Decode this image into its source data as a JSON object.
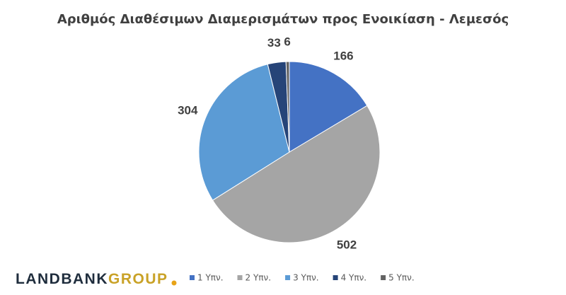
{
  "chart_data": {
    "type": "pie",
    "title": "Αριθμός Διαθέσιμων Διαμερισμάτων προς Ενοικίαση - Λεμεσός",
    "categories": [
      "1 Υπν.",
      "2 Υπν.",
      "3 Υπν.",
      "4 Υπν.",
      "5 Υπν."
    ],
    "values": [
      166,
      502,
      304,
      33,
      6
    ],
    "colors": [
      "#4472c4",
      "#a5a5a5",
      "#5b9bd5",
      "#264478",
      "#636363"
    ],
    "legend": "bottom"
  },
  "logo": {
    "main": "LANDBANK",
    "accent": "GROUP"
  }
}
